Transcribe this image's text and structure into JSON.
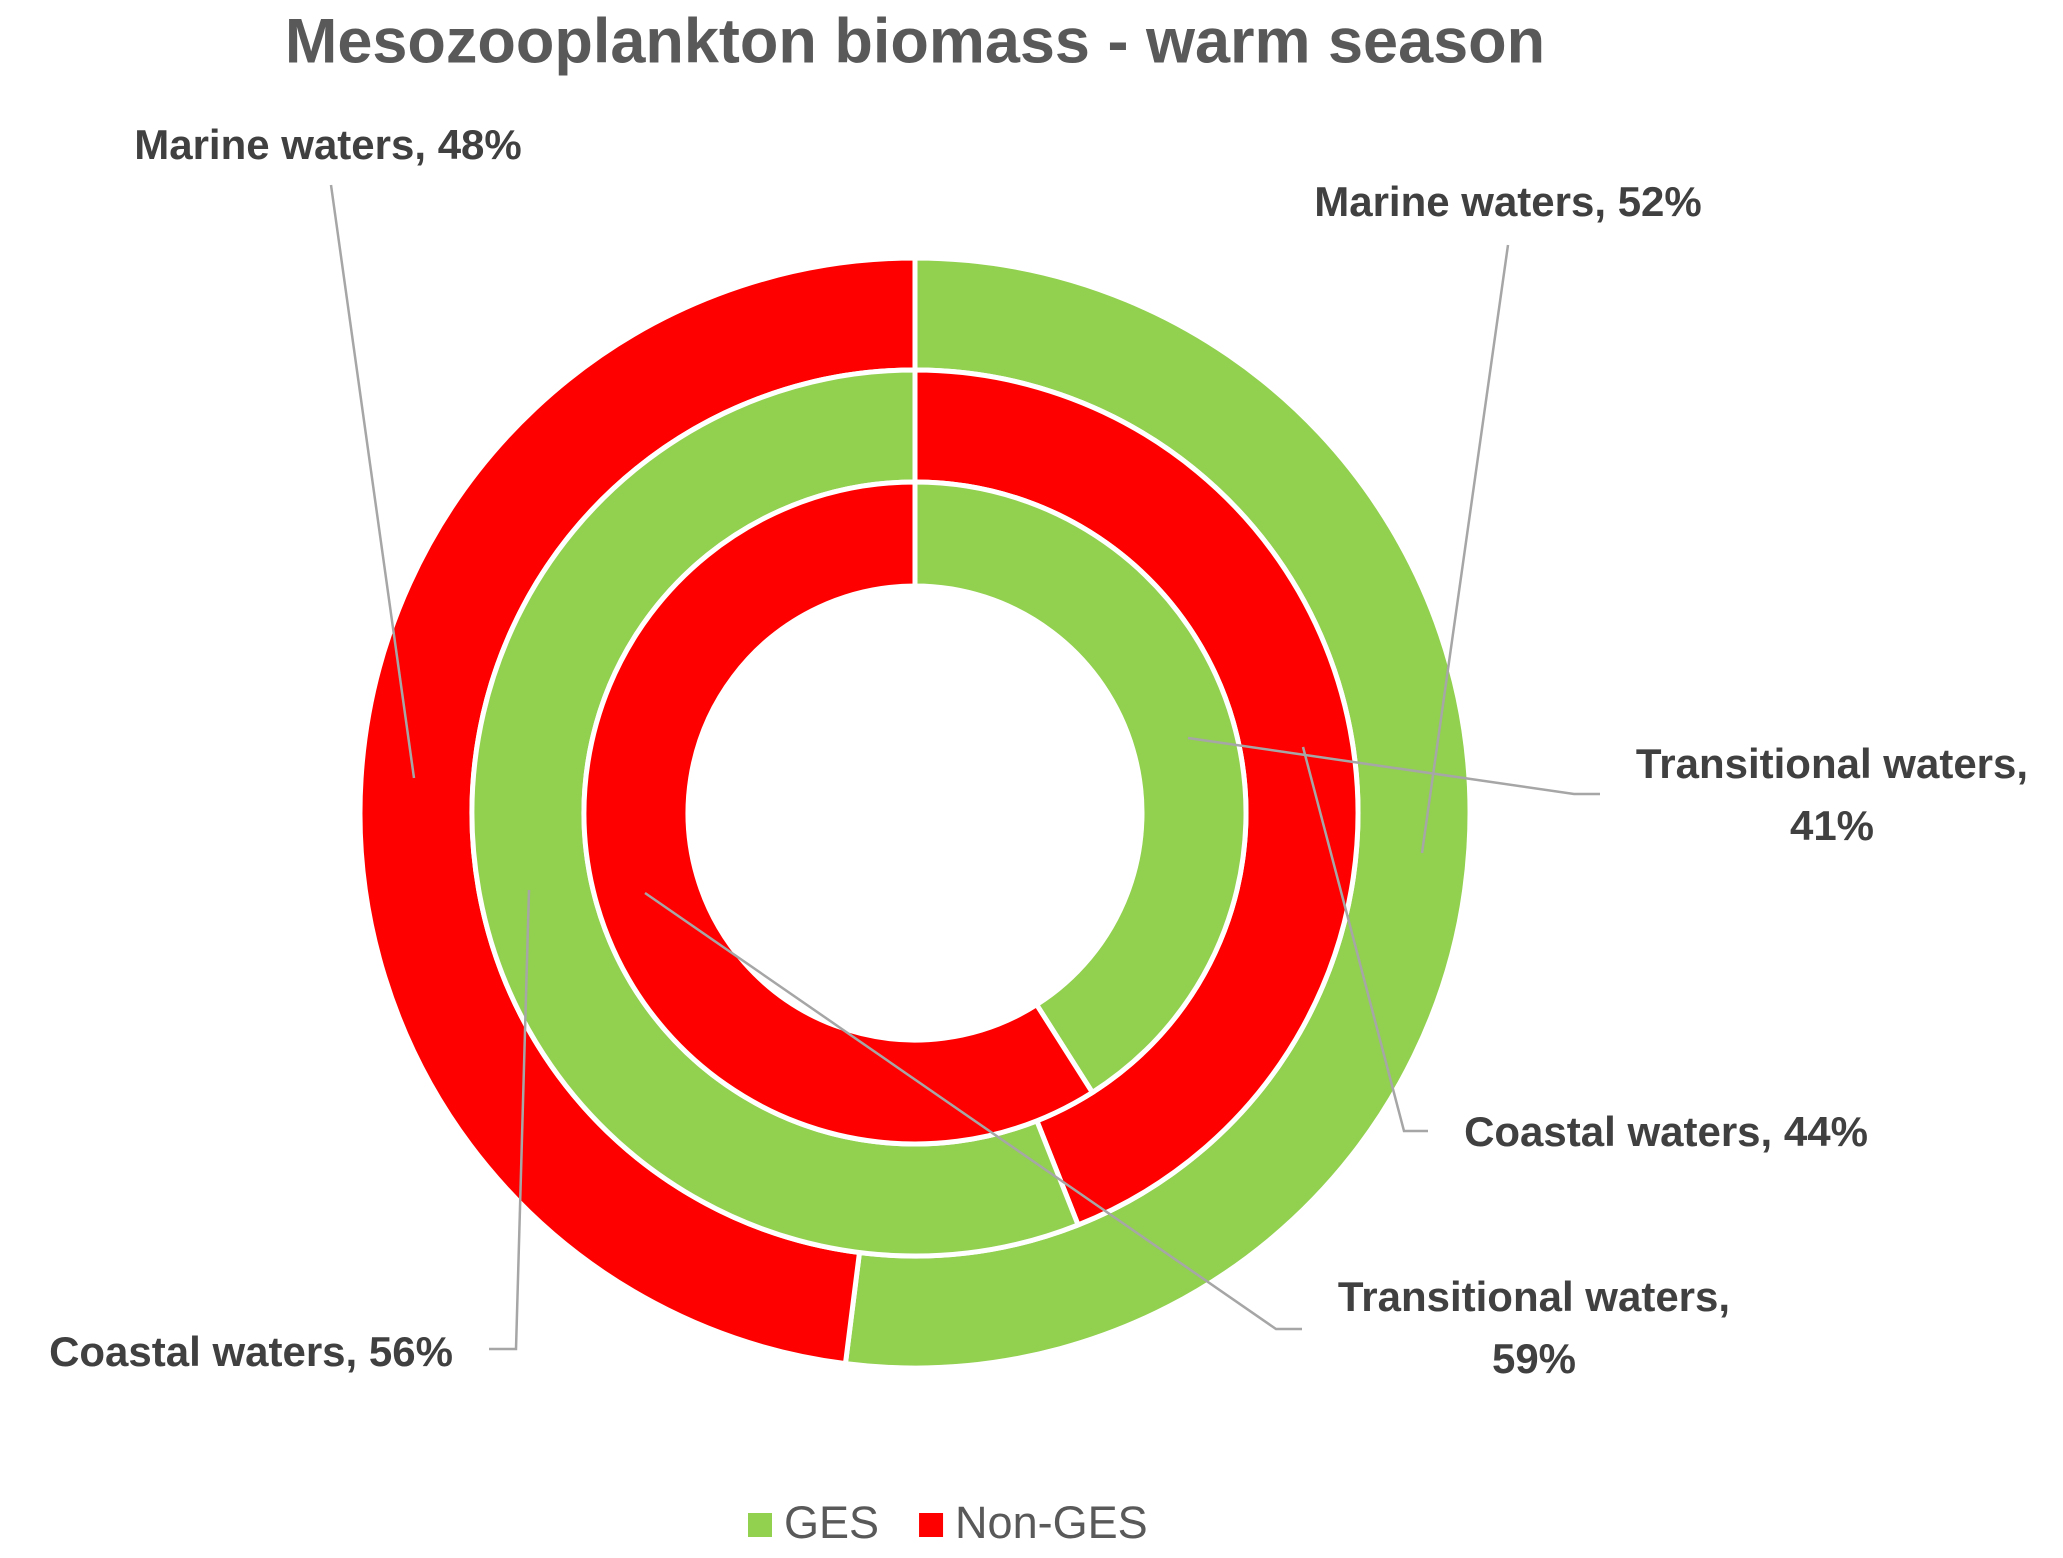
{
  "chart_data": {
    "type": "multi-donut",
    "title": "Mesozooplankton biomass - warm season",
    "legend": [
      {
        "name": "GES",
        "color": "#92d050"
      },
      {
        "name": "Non-GES",
        "color": "#ff0000"
      }
    ],
    "series": [
      {
        "name": "Marine waters",
        "categories": [
          "GES",
          "Non-GES"
        ],
        "values": [
          52,
          48
        ],
        "value_labels": [
          "Marine waters, 52%",
          "Marine waters, 48%"
        ]
      },
      {
        "name": "Coastal waters",
        "categories": [
          "Non-GES",
          "GES"
        ],
        "values": [
          44,
          56
        ],
        "value_labels": [
          "Coastal waters, 44%",
          "Coastal waters, 56%"
        ]
      },
      {
        "name": "Transitional waters",
        "categories": [
          "GES",
          "Non-GES"
        ],
        "values": [
          41,
          59
        ],
        "value_labels": [
          "Transitional waters, 41%",
          "Transitional waters, 59%"
        ]
      }
    ]
  }
}
